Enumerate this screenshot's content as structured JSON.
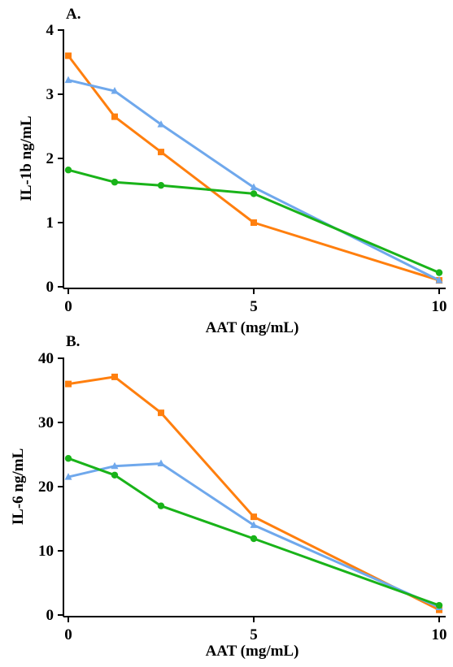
{
  "chart_data": [
    {
      "type": "line",
      "panel_label": "A.",
      "xlabel": "AAT (mg/mL)",
      "ylabel": "IL-1b ng/mL",
      "xlim": [
        0,
        10
      ],
      "ylim": [
        0,
        4
      ],
      "xticks": [
        0,
        5,
        10
      ],
      "yticks": [
        0,
        1,
        2,
        3,
        4
      ],
      "grid": false,
      "series": [
        {
          "color": "#ff7f0e",
          "marker": "square",
          "x": [
            0,
            1.25,
            2.5,
            5,
            10
          ],
          "y": [
            3.6,
            2.65,
            2.1,
            1.0,
            0.1
          ]
        },
        {
          "color": "#6fa8ec",
          "marker": "triangle",
          "x": [
            0,
            1.25,
            2.5,
            5,
            10
          ],
          "y": [
            3.22,
            3.05,
            2.53,
            1.55,
            0.1
          ]
        },
        {
          "color": "#19b319",
          "marker": "circle",
          "x": [
            0,
            1.25,
            2.5,
            5,
            10
          ],
          "y": [
            1.82,
            1.63,
            1.58,
            1.45,
            0.22
          ]
        }
      ]
    },
    {
      "type": "line",
      "panel_label": "B.",
      "xlabel": "AAT (mg/mL)",
      "ylabel": "IL-6 ng/mL",
      "xlim": [
        0,
        10
      ],
      "ylim": [
        0,
        40
      ],
      "xticks": [
        0,
        5,
        10
      ],
      "yticks": [
        0,
        10,
        20,
        30,
        40
      ],
      "grid": false,
      "series": [
        {
          "color": "#ff7f0e",
          "marker": "square",
          "x": [
            0,
            1.25,
            2.5,
            5,
            10
          ],
          "y": [
            36.0,
            37.1,
            31.5,
            15.3,
            0.8
          ]
        },
        {
          "color": "#6fa8ec",
          "marker": "triangle",
          "x": [
            0,
            1.25,
            2.5,
            5,
            10
          ],
          "y": [
            21.5,
            23.2,
            23.6,
            14.0,
            1.2
          ]
        },
        {
          "color": "#19b319",
          "marker": "circle",
          "x": [
            0,
            1.25,
            2.5,
            5,
            10
          ],
          "y": [
            24.4,
            21.8,
            17.0,
            11.9,
            1.5
          ]
        }
      ]
    }
  ]
}
